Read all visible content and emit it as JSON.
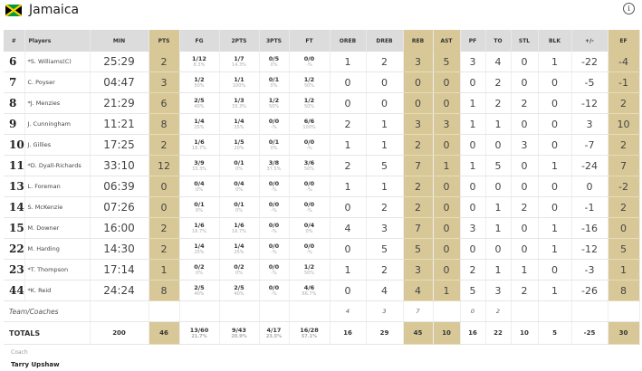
{
  "team": {
    "name": "Jamaica",
    "flag_colors": {
      "green": "#009b3a",
      "yellow": "#fed100",
      "black": "#000000"
    }
  },
  "colors": {
    "highlight": "#d8c898",
    "header": "#dcdcdc"
  },
  "columns": [
    "#",
    "Players",
    "MIN",
    "PTS",
    "FG",
    "2PTS",
    "3PTS",
    "FT",
    "OREB",
    "DREB",
    "REB",
    "AST",
    "PF",
    "TO",
    "STL",
    "BLK",
    "+/-",
    "EF"
  ],
  "players": [
    {
      "num": "6",
      "name": "*S. Williams(C)",
      "min": "25:29",
      "pts": "2",
      "fg": "1/12",
      "fg_pct": "8.3%",
      "p2": "1/7",
      "p2_pct": "14.3%",
      "p3": "0/5",
      "p3_pct": "0%",
      "ft": "0/0",
      "ft_pct": "-%",
      "oreb": "1",
      "dreb": "2",
      "reb": "3",
      "ast": "5",
      "pf": "3",
      "to": "4",
      "stl": "0",
      "blk": "1",
      "pm": "-22",
      "ef": "-4"
    },
    {
      "num": "7",
      "name": "C. Poyser",
      "min": "04:47",
      "pts": "3",
      "fg": "1/2",
      "fg_pct": "50%",
      "p2": "1/1",
      "p2_pct": "100%",
      "p3": "0/1",
      "p3_pct": "0%",
      "ft": "1/2",
      "ft_pct": "50%",
      "oreb": "0",
      "dreb": "0",
      "reb": "0",
      "ast": "0",
      "pf": "0",
      "to": "2",
      "stl": "0",
      "blk": "0",
      "pm": "-5",
      "ef": "-1"
    },
    {
      "num": "8",
      "name": "*J. Menzies",
      "min": "21:29",
      "pts": "6",
      "fg": "2/5",
      "fg_pct": "40%",
      "p2": "1/3",
      "p2_pct": "33.3%",
      "p3": "1/2",
      "p3_pct": "50%",
      "ft": "1/2",
      "ft_pct": "50%",
      "oreb": "0",
      "dreb": "0",
      "reb": "0",
      "ast": "0",
      "pf": "1",
      "to": "2",
      "stl": "2",
      "blk": "0",
      "pm": "-12",
      "ef": "2"
    },
    {
      "num": "9",
      "name": "J. Cunningham",
      "min": "11:21",
      "pts": "8",
      "fg": "1/4",
      "fg_pct": "25%",
      "p2": "1/4",
      "p2_pct": "25%",
      "p3": "0/0",
      "p3_pct": "-%",
      "ft": "6/6",
      "ft_pct": "100%",
      "oreb": "2",
      "dreb": "1",
      "reb": "3",
      "ast": "3",
      "pf": "1",
      "to": "1",
      "stl": "0",
      "blk": "0",
      "pm": "3",
      "ef": "10"
    },
    {
      "num": "10",
      "name": "J. Gillies",
      "min": "17:25",
      "pts": "2",
      "fg": "1/6",
      "fg_pct": "16.7%",
      "p2": "1/5",
      "p2_pct": "20%",
      "p3": "0/1",
      "p3_pct": "0%",
      "ft": "0/0",
      "ft_pct": "-%",
      "oreb": "1",
      "dreb": "1",
      "reb": "2",
      "ast": "0",
      "pf": "0",
      "to": "0",
      "stl": "3",
      "blk": "0",
      "pm": "-7",
      "ef": "2"
    },
    {
      "num": "11",
      "name": "*D. Dyall-Richards",
      "min": "33:10",
      "pts": "12",
      "fg": "3/9",
      "fg_pct": "33.3%",
      "p2": "0/1",
      "p2_pct": "0%",
      "p3": "3/8",
      "p3_pct": "37.5%",
      "ft": "3/6",
      "ft_pct": "50%",
      "oreb": "2",
      "dreb": "5",
      "reb": "7",
      "ast": "1",
      "pf": "1",
      "to": "5",
      "stl": "0",
      "blk": "1",
      "pm": "-24",
      "ef": "7"
    },
    {
      "num": "13",
      "name": "L. Foreman",
      "min": "06:39",
      "pts": "0",
      "fg": "0/4",
      "fg_pct": "0%",
      "p2": "0/4",
      "p2_pct": "0%",
      "p3": "0/0",
      "p3_pct": "-%",
      "ft": "0/0",
      "ft_pct": "-%",
      "oreb": "1",
      "dreb": "1",
      "reb": "2",
      "ast": "0",
      "pf": "0",
      "to": "0",
      "stl": "0",
      "blk": "0",
      "pm": "0",
      "ef": "-2"
    },
    {
      "num": "14",
      "name": "S. McKenzie",
      "min": "07:26",
      "pts": "0",
      "fg": "0/1",
      "fg_pct": "0%",
      "p2": "0/1",
      "p2_pct": "0%",
      "p3": "0/0",
      "p3_pct": "-%",
      "ft": "0/0",
      "ft_pct": "-%",
      "oreb": "0",
      "dreb": "2",
      "reb": "2",
      "ast": "0",
      "pf": "0",
      "to": "1",
      "stl": "2",
      "blk": "0",
      "pm": "-1",
      "ef": "2"
    },
    {
      "num": "15",
      "name": "M. Downer",
      "min": "16:00",
      "pts": "2",
      "fg": "1/6",
      "fg_pct": "16.7%",
      "p2": "1/6",
      "p2_pct": "16.7%",
      "p3": "0/0",
      "p3_pct": "-%",
      "ft": "0/4",
      "ft_pct": "0%",
      "oreb": "4",
      "dreb": "3",
      "reb": "7",
      "ast": "0",
      "pf": "3",
      "to": "1",
      "stl": "0",
      "blk": "1",
      "pm": "-16",
      "ef": "0"
    },
    {
      "num": "22",
      "name": "M. Harding",
      "min": "14:30",
      "pts": "2",
      "fg": "1/4",
      "fg_pct": "25%",
      "p2": "1/4",
      "p2_pct": "25%",
      "p3": "0/0",
      "p3_pct": "-%",
      "ft": "0/0",
      "ft_pct": "-%",
      "oreb": "0",
      "dreb": "5",
      "reb": "5",
      "ast": "0",
      "pf": "0",
      "to": "0",
      "stl": "0",
      "blk": "1",
      "pm": "-12",
      "ef": "5"
    },
    {
      "num": "23",
      "name": "*T. Thompson",
      "min": "17:14",
      "pts": "1",
      "fg": "0/2",
      "fg_pct": "0%",
      "p2": "0/2",
      "p2_pct": "0%",
      "p3": "0/0",
      "p3_pct": "-%",
      "ft": "1/2",
      "ft_pct": "50%",
      "oreb": "1",
      "dreb": "2",
      "reb": "3",
      "ast": "0",
      "pf": "2",
      "to": "1",
      "stl": "1",
      "blk": "0",
      "pm": "-3",
      "ef": "1"
    },
    {
      "num": "44",
      "name": "*K. Reid",
      "min": "24:24",
      "pts": "8",
      "fg": "2/5",
      "fg_pct": "40%",
      "p2": "2/5",
      "p2_pct": "40%",
      "p3": "0/0",
      "p3_pct": "-%",
      "ft": "4/6",
      "ft_pct": "66.7%",
      "oreb": "0",
      "dreb": "4",
      "reb": "4",
      "ast": "1",
      "pf": "5",
      "to": "3",
      "stl": "2",
      "blk": "1",
      "pm": "-26",
      "ef": "8"
    }
  ],
  "team_row": {
    "label": "Team/Coaches",
    "oreb": "4",
    "dreb": "3",
    "reb": "7",
    "pf": "0",
    "to": "2"
  },
  "totals": {
    "label": "TOTALS",
    "min": "200",
    "pts": "46",
    "fg": "13/60",
    "fg_pct": "21.7%",
    "p2": "9/43",
    "p2_pct": "20.9%",
    "p3": "4/17",
    "p3_pct": "23.5%",
    "ft": "16/28",
    "ft_pct": "57.1%",
    "oreb": "16",
    "dreb": "29",
    "reb": "45",
    "ast": "10",
    "pf": "16",
    "to": "22",
    "stl": "10",
    "blk": "5",
    "pm": "-25",
    "ef": "30"
  },
  "coach": {
    "label": "Coach",
    "name": "Tarry Upshaw"
  }
}
